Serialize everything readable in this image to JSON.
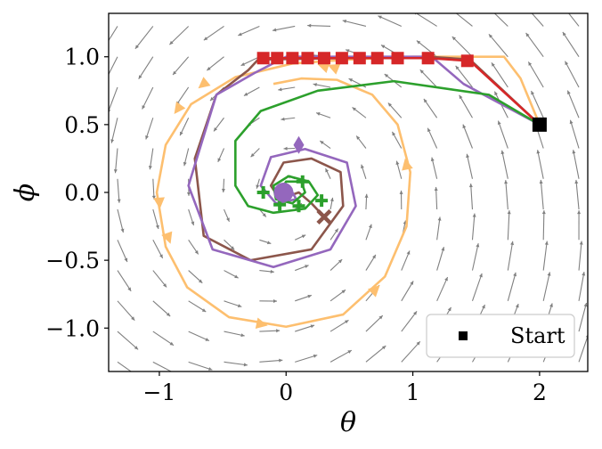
{
  "chart_data": {
    "type": "line",
    "title": "",
    "xlabel": "θ",
    "ylabel": "ϕ",
    "xlim": [
      -1.4,
      2.38
    ],
    "ylim": [
      -1.32,
      1.32
    ],
    "xticks": [
      {
        "v": -1,
        "label": "−1"
      },
      {
        "v": 0,
        "label": "0"
      },
      {
        "v": 1,
        "label": "1"
      },
      {
        "v": 2,
        "label": "2"
      }
    ],
    "yticks": [
      {
        "v": 1.0,
        "label": "1.0"
      },
      {
        "v": 0.5,
        "label": "0.5"
      },
      {
        "v": 0.0,
        "label": "0.0"
      },
      {
        "v": -0.5,
        "label": "−0.5"
      },
      {
        "v": -1.0,
        "label": "−1.0"
      }
    ],
    "grid": false,
    "legend": {
      "position": "bottom-right",
      "entries": [
        {
          "label": "Start",
          "marker": "square",
          "color": "#000000"
        }
      ]
    },
    "start_point": {
      "x": 2.0,
      "y": 0.5
    },
    "vector_field": {
      "description": "damped rotational flow",
      "color": "#808080"
    },
    "colors": {
      "orange": "#FDBF6F",
      "brown": "#8C564B",
      "purple": "#9467BD",
      "green": "#2CA02C",
      "red": "#D62728"
    },
    "series": [
      {
        "color": "#FDBF6F",
        "style": "line",
        "markers": "triangles",
        "points": [
          [
            2.0,
            0.5
          ],
          [
            1.85,
            0.84
          ],
          [
            1.72,
            1.0
          ],
          [
            1.0,
            1.0
          ],
          [
            0.5,
            0.98
          ],
          [
            0.05,
            0.95
          ],
          [
            -0.4,
            0.85
          ],
          [
            -0.75,
            0.65
          ],
          [
            -0.95,
            0.35
          ],
          [
            -1.02,
            0.0
          ],
          [
            -0.95,
            -0.4
          ],
          [
            -0.78,
            -0.7
          ],
          [
            -0.45,
            -0.92
          ],
          [
            0.0,
            -0.99
          ],
          [
            0.45,
            -0.9
          ],
          [
            0.78,
            -0.62
          ],
          [
            0.95,
            -0.25
          ],
          [
            0.98,
            0.15
          ],
          [
            0.88,
            0.5
          ],
          [
            0.68,
            0.72
          ],
          [
            0.4,
            0.83
          ],
          [
            0.12,
            0.84
          ],
          [
            -0.1,
            0.8
          ]
        ],
        "triangles": [
          [
            0.3,
            0.93
          ],
          [
            -0.65,
            0.8
          ],
          [
            -0.85,
            0.62
          ],
          [
            -1.0,
            -0.07
          ],
          [
            -0.93,
            -0.33
          ],
          [
            -0.2,
            -0.97
          ],
          [
            0.7,
            -0.72
          ],
          [
            0.95,
            0.2
          ],
          [
            0.38,
            0.92
          ]
        ]
      },
      {
        "color": "#8C564B",
        "style": "line",
        "points": [
          [
            2.0,
            0.5
          ],
          [
            1.45,
            0.98
          ],
          [
            1.12,
            1.0
          ],
          [
            -0.22,
            0.98
          ],
          [
            -0.3,
            0.9
          ],
          [
            -0.55,
            0.72
          ],
          [
            -0.72,
            0.25
          ],
          [
            -0.65,
            -0.32
          ],
          [
            -0.28,
            -0.5
          ],
          [
            0.2,
            -0.42
          ],
          [
            0.45,
            -0.1
          ],
          [
            0.43,
            0.15
          ],
          [
            0.2,
            0.25
          ],
          [
            -0.02,
            0.22
          ],
          [
            -0.12,
            0.05
          ],
          [
            -0.05,
            -0.05
          ],
          [
            0.1,
            0.0
          ],
          [
            0.2,
            -0.08
          ],
          [
            0.3,
            -0.18
          ]
        ],
        "end_marker": {
          "x": 0.3,
          "y": -0.18,
          "shape": "x"
        }
      },
      {
        "color": "#9467BD",
        "style": "line",
        "points": [
          [
            2.0,
            0.5
          ],
          [
            1.4,
            0.8
          ],
          [
            1.15,
            1.0
          ],
          [
            0.0,
            1.0
          ],
          [
            -0.25,
            0.88
          ],
          [
            -0.55,
            0.72
          ],
          [
            -0.77,
            0.05
          ],
          [
            -0.58,
            -0.42
          ],
          [
            -0.1,
            -0.55
          ],
          [
            0.35,
            -0.42
          ],
          [
            0.55,
            -0.1
          ],
          [
            0.48,
            0.22
          ],
          [
            0.15,
            0.32
          ],
          [
            -0.12,
            0.26
          ],
          [
            -0.2,
            0.05
          ],
          [
            -0.08,
            -0.08
          ],
          [
            0.08,
            -0.05
          ],
          [
            0.05,
            0.0
          ],
          [
            0.0,
            0.0
          ]
        ],
        "markers": [
          {
            "x": 0.1,
            "y": 0.35,
            "shape": "diamond"
          },
          {
            "x": -0.02,
            "y": 0.0,
            "shape": "circle"
          }
        ]
      },
      {
        "color": "#2CA02C",
        "style": "line",
        "points": [
          [
            2.0,
            0.5
          ],
          [
            1.6,
            0.72
          ],
          [
            0.85,
            0.82
          ],
          [
            0.25,
            0.75
          ],
          [
            -0.2,
            0.6
          ],
          [
            -0.4,
            0.38
          ],
          [
            -0.4,
            0.05
          ],
          [
            -0.3,
            -0.1
          ],
          [
            -0.1,
            -0.15
          ],
          [
            0.15,
            -0.12
          ],
          [
            0.25,
            -0.02
          ],
          [
            0.18,
            0.08
          ],
          [
            0.02,
            0.12
          ],
          [
            -0.1,
            0.05
          ],
          [
            -0.08,
            -0.05
          ],
          [
            0.05,
            -0.08
          ],
          [
            0.15,
            0.0
          ],
          [
            0.12,
            0.08
          ],
          [
            0.0,
            0.08
          ],
          [
            -0.05,
            0.0
          ]
        ],
        "plus_markers": [
          [
            -0.18,
            0.0
          ],
          [
            0.13,
            0.08
          ],
          [
            0.28,
            -0.06
          ],
          [
            -0.05,
            -0.09
          ],
          [
            0.1,
            -0.1
          ],
          [
            0.0,
            0.02
          ]
        ]
      },
      {
        "color": "#D62728",
        "style": "line",
        "markers": "squares",
        "points": [
          [
            2.0,
            0.5
          ],
          [
            1.45,
            0.97
          ],
          [
            1.12,
            0.99
          ],
          [
            -0.2,
            0.99
          ]
        ],
        "squares": [
          [
            1.43,
            0.97
          ],
          [
            1.12,
            0.99
          ],
          [
            0.88,
            0.99
          ],
          [
            0.72,
            0.99
          ],
          [
            0.58,
            0.99
          ],
          [
            0.44,
            0.99
          ],
          [
            0.3,
            0.99
          ],
          [
            0.17,
            0.99
          ],
          [
            0.05,
            0.99
          ],
          [
            -0.07,
            0.99
          ],
          [
            -0.18,
            0.99
          ]
        ]
      }
    ]
  }
}
